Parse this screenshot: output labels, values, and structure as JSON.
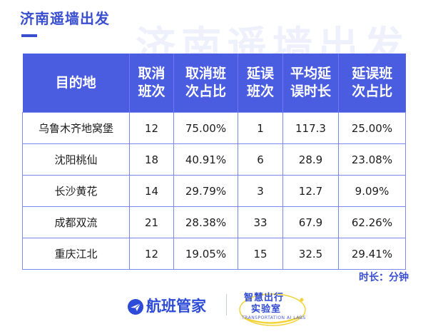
{
  "page": {
    "title": "济南遥墙出发",
    "unit_note": "时长：分钟"
  },
  "table": {
    "headers": [
      [
        "目的地"
      ],
      [
        "取消",
        "班次"
      ],
      [
        "取消班",
        "次占比"
      ],
      [
        "延误",
        "班次"
      ],
      [
        "平均延",
        "误时长"
      ],
      [
        "延误班",
        "次占比"
      ]
    ],
    "rows": [
      [
        "乌鲁木齐地窝堡",
        "12",
        "75.00%",
        "1",
        "117.3",
        "25.00%"
      ],
      [
        "沈阳桃仙",
        "18",
        "40.91%",
        "6",
        "28.9",
        "23.08%"
      ],
      [
        "长沙黄花",
        "14",
        "29.79%",
        "3",
        "12.7",
        "9.09%"
      ],
      [
        "成都双流",
        "21",
        "28.38%",
        "33",
        "67.9",
        "62.26%"
      ],
      [
        "重庆江北",
        "12",
        "19.05%",
        "15",
        "32.5",
        "29.41%"
      ]
    ]
  },
  "footer": {
    "brand": "航班管家",
    "lab_line1": "智慧出行",
    "lab_line2": "实验室",
    "lab_en": "TRANSPORTATION AI LABS"
  },
  "colors": {
    "accent": "#3a4fd0",
    "header_bg": "#4a5ce0",
    "grid": "#7c8cec",
    "lab_yellow": "#f2d43a"
  }
}
